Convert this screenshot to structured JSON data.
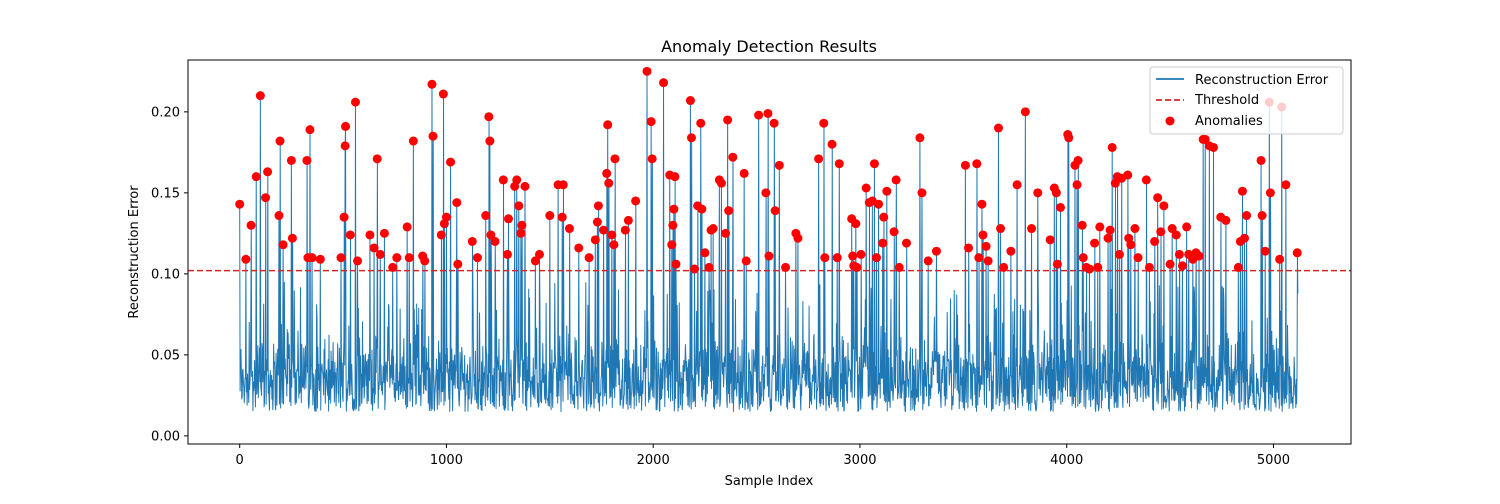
{
  "chart_data": {
    "type": "line",
    "title": "Anomaly Detection Results",
    "xlabel": "Sample Index",
    "ylabel": "Reconstruction Error",
    "xlim": [
      -250,
      5375
    ],
    "ylim": [
      -0.005,
      0.232
    ],
    "xticks": [
      0,
      1000,
      2000,
      3000,
      4000,
      5000
    ],
    "yticks": [
      0.0,
      0.05,
      0.1,
      0.15,
      0.2
    ],
    "xtick_labels": [
      "0",
      "1000",
      "2000",
      "3000",
      "4000",
      "5000"
    ],
    "ytick_labels": [
      "0.00",
      "0.05",
      "0.10",
      "0.15",
      "0.20"
    ],
    "grid": false,
    "legend": {
      "placement": "top-right",
      "entries": [
        "Reconstruction Error",
        "Threshold",
        "Anomalies"
      ]
    },
    "colors": {
      "error_line": "#1f77b4",
      "threshold": "#d62728",
      "anomaly": "#ff0000"
    },
    "series": [
      {
        "name": "Reconstruction Error",
        "style": "line",
        "x_start": 0,
        "x_end": 5119,
        "baseline_min": 0.005,
        "baseline_max": 0.06
      },
      {
        "name": "Threshold",
        "style": "dashed-hline",
        "y": 0.102
      },
      {
        "name": "Anomalies",
        "style": "scatter",
        "points": [
          [
            0,
            0.143
          ],
          [
            30,
            0.109
          ],
          [
            55,
            0.13
          ],
          [
            80,
            0.16
          ],
          [
            100,
            0.21
          ],
          [
            125,
            0.147
          ],
          [
            135,
            0.163
          ],
          [
            190,
            0.136
          ],
          [
            195,
            0.182
          ],
          [
            210,
            0.118
          ],
          [
            250,
            0.17
          ],
          [
            255,
            0.122
          ],
          [
            325,
            0.17
          ],
          [
            330,
            0.11
          ],
          [
            340,
            0.189
          ],
          [
            350,
            0.11
          ],
          [
            390,
            0.109
          ],
          [
            490,
            0.11
          ],
          [
            505,
            0.135
          ],
          [
            510,
            0.179
          ],
          [
            512,
            0.191
          ],
          [
            535,
            0.124
          ],
          [
            560,
            0.206
          ],
          [
            570,
            0.108
          ],
          [
            630,
            0.124
          ],
          [
            650,
            0.116
          ],
          [
            665,
            0.171
          ],
          [
            680,
            0.112
          ],
          [
            700,
            0.125
          ],
          [
            740,
            0.104
          ],
          [
            760,
            0.11
          ],
          [
            810,
            0.129
          ],
          [
            820,
            0.11
          ],
          [
            840,
            0.182
          ],
          [
            885,
            0.111
          ],
          [
            895,
            0.108
          ],
          [
            930,
            0.217
          ],
          [
            935,
            0.185
          ],
          [
            975,
            0.124
          ],
          [
            985,
            0.211
          ],
          [
            990,
            0.131
          ],
          [
            1000,
            0.135
          ],
          [
            1020,
            0.169
          ],
          [
            1050,
            0.144
          ],
          [
            1055,
            0.106
          ],
          [
            1125,
            0.12
          ],
          [
            1150,
            0.11
          ],
          [
            1190,
            0.136
          ],
          [
            1205,
            0.197
          ],
          [
            1210,
            0.182
          ],
          [
            1215,
            0.124
          ],
          [
            1235,
            0.12
          ],
          [
            1275,
            0.158
          ],
          [
            1300,
            0.134
          ],
          [
            1295,
            0.112
          ],
          [
            1330,
            0.154
          ],
          [
            1340,
            0.158
          ],
          [
            1350,
            0.142
          ],
          [
            1365,
            0.13
          ],
          [
            1360,
            0.125
          ],
          [
            1380,
            0.154
          ],
          [
            1430,
            0.108
          ],
          [
            1450,
            0.112
          ],
          [
            1500,
            0.136
          ],
          [
            1540,
            0.155
          ],
          [
            1565,
            0.155
          ],
          [
            1560,
            0.135
          ],
          [
            1595,
            0.128
          ],
          [
            1640,
            0.116
          ],
          [
            1690,
            0.11
          ],
          [
            1720,
            0.121
          ],
          [
            1735,
            0.142
          ],
          [
            1730,
            0.132
          ],
          [
            1760,
            0.127
          ],
          [
            1775,
            0.162
          ],
          [
            1780,
            0.192
          ],
          [
            1785,
            0.156
          ],
          [
            1800,
            0.124
          ],
          [
            1815,
            0.171
          ],
          [
            1810,
            0.118
          ],
          [
            1865,
            0.127
          ],
          [
            1880,
            0.133
          ],
          [
            1915,
            0.145
          ],
          [
            1970,
            0.225
          ],
          [
            1990,
            0.194
          ],
          [
            1995,
            0.171
          ],
          [
            2050,
            0.218
          ],
          [
            2080,
            0.161
          ],
          [
            2090,
            0.118
          ],
          [
            2100,
            0.14
          ],
          [
            2105,
            0.16
          ],
          [
            2110,
            0.106
          ],
          [
            2095,
            0.13
          ],
          [
            2180,
            0.207
          ],
          [
            2185,
            0.184
          ],
          [
            2200,
            0.103
          ],
          [
            2215,
            0.142
          ],
          [
            2230,
            0.193
          ],
          [
            2235,
            0.14
          ],
          [
            2250,
            0.113
          ],
          [
            2270,
            0.104
          ],
          [
            2280,
            0.127
          ],
          [
            2290,
            0.128
          ],
          [
            2320,
            0.158
          ],
          [
            2330,
            0.156
          ],
          [
            2350,
            0.125
          ],
          [
            2360,
            0.195
          ],
          [
            2365,
            0.139
          ],
          [
            2385,
            0.172
          ],
          [
            2440,
            0.162
          ],
          [
            2450,
            0.108
          ],
          [
            2510,
            0.198
          ],
          [
            2545,
            0.15
          ],
          [
            2555,
            0.199
          ],
          [
            2560,
            0.111
          ],
          [
            2585,
            0.193
          ],
          [
            2590,
            0.139
          ],
          [
            2610,
            0.167
          ],
          [
            2640,
            0.104
          ],
          [
            2690,
            0.125
          ],
          [
            2700,
            0.122
          ],
          [
            2800,
            0.171
          ],
          [
            2825,
            0.193
          ],
          [
            2830,
            0.11
          ],
          [
            2865,
            0.18
          ],
          [
            2890,
            0.11
          ],
          [
            2900,
            0.168
          ],
          [
            2960,
            0.134
          ],
          [
            2965,
            0.111
          ],
          [
            2970,
            0.105
          ],
          [
            2980,
            0.131
          ],
          [
            2985,
            0.104
          ],
          [
            3005,
            0.112
          ],
          [
            3030,
            0.153
          ],
          [
            3045,
            0.144
          ],
          [
            3060,
            0.145
          ],
          [
            3070,
            0.168
          ],
          [
            3080,
            0.11
          ],
          [
            3090,
            0.143
          ],
          [
            3110,
            0.119
          ],
          [
            3115,
            0.135
          ],
          [
            3130,
            0.151
          ],
          [
            3165,
            0.126
          ],
          [
            3175,
            0.158
          ],
          [
            3190,
            0.104
          ],
          [
            3225,
            0.119
          ],
          [
            3290,
            0.184
          ],
          [
            3300,
            0.15
          ],
          [
            3330,
            0.108
          ],
          [
            3370,
            0.114
          ],
          [
            3510,
            0.167
          ],
          [
            3525,
            0.116
          ],
          [
            3565,
            0.168
          ],
          [
            3575,
            0.11
          ],
          [
            3590,
            0.143
          ],
          [
            3595,
            0.124
          ],
          [
            3610,
            0.117
          ],
          [
            3620,
            0.108
          ],
          [
            3670,
            0.19
          ],
          [
            3680,
            0.128
          ],
          [
            3695,
            0.104
          ],
          [
            3730,
            0.114
          ],
          [
            3760,
            0.155
          ],
          [
            3800,
            0.2
          ],
          [
            3830,
            0.128
          ],
          [
            3860,
            0.15
          ],
          [
            3920,
            0.121
          ],
          [
            3940,
            0.153
          ],
          [
            3950,
            0.15
          ],
          [
            3955,
            0.106
          ],
          [
            3970,
            0.141
          ],
          [
            4005,
            0.186
          ],
          [
            4010,
            0.184
          ],
          [
            4040,
            0.167
          ],
          [
            4055,
            0.17
          ],
          [
            4050,
            0.155
          ],
          [
            4075,
            0.13
          ],
          [
            4080,
            0.11
          ],
          [
            4095,
            0.104
          ],
          [
            4110,
            0.103
          ],
          [
            4135,
            0.119
          ],
          [
            4150,
            0.104
          ],
          [
            4160,
            0.129
          ],
          [
            4200,
            0.122
          ],
          [
            4210,
            0.127
          ],
          [
            4220,
            0.178
          ],
          [
            4235,
            0.156
          ],
          [
            4245,
            0.16
          ],
          [
            4255,
            0.112
          ],
          [
            4265,
            0.159
          ],
          [
            4295,
            0.161
          ],
          [
            4300,
            0.122
          ],
          [
            4310,
            0.118
          ],
          [
            4330,
            0.128
          ],
          [
            4345,
            0.11
          ],
          [
            4385,
            0.158
          ],
          [
            4400,
            0.104
          ],
          [
            4425,
            0.12
          ],
          [
            4440,
            0.147
          ],
          [
            4455,
            0.126
          ],
          [
            4470,
            0.142
          ],
          [
            4500,
            0.106
          ],
          [
            4510,
            0.128
          ],
          [
            4530,
            0.124
          ],
          [
            4545,
            0.112
          ],
          [
            4560,
            0.105
          ],
          [
            4580,
            0.129
          ],
          [
            4590,
            0.112
          ],
          [
            4610,
            0.109
          ],
          [
            4625,
            0.113
          ],
          [
            4640,
            0.111
          ],
          [
            4660,
            0.183
          ],
          [
            4670,
            0.183
          ],
          [
            4690,
            0.179
          ],
          [
            4710,
            0.178
          ],
          [
            4745,
            0.135
          ],
          [
            4770,
            0.133
          ],
          [
            4830,
            0.104
          ],
          [
            4840,
            0.12
          ],
          [
            4850,
            0.151
          ],
          [
            4860,
            0.122
          ],
          [
            4870,
            0.136
          ],
          [
            4940,
            0.17
          ],
          [
            4945,
            0.136
          ],
          [
            4960,
            0.114
          ],
          [
            4980,
            0.206
          ],
          [
            4985,
            0.15
          ],
          [
            5030,
            0.109
          ],
          [
            5040,
            0.203
          ],
          [
            5060,
            0.155
          ],
          [
            5115,
            0.113
          ]
        ]
      }
    ]
  }
}
